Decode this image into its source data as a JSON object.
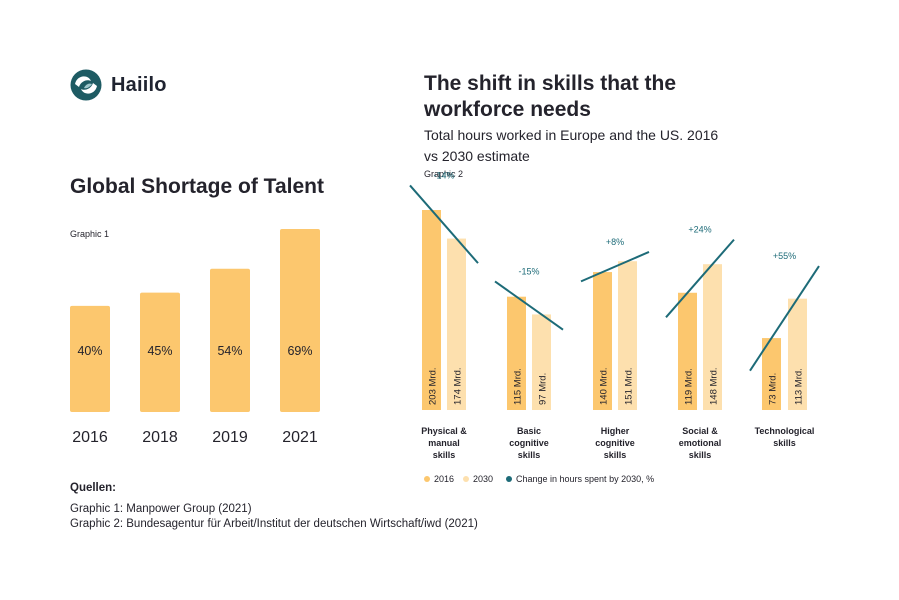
{
  "brand": {
    "name": "Haiilo",
    "logo_icon": "haiilo-logo-icon",
    "logo_color": "#1e5b63"
  },
  "colors": {
    "bar_2016": "#fcc76e",
    "bar_2030": "#fde0ae",
    "trend_line": "#1d6b78",
    "text": "#24232c"
  },
  "left_chart": {
    "title": "Global Shortage of Talent",
    "graphic_label": "Graphic 1"
  },
  "right_chart": {
    "title": "The shift in skills that the workforce needs",
    "subtitle": "Total hours worked in Europe and the US. 2016 vs 2030 estimate",
    "graphic_label": "Graphic 2"
  },
  "sources": {
    "heading": "Quellen:",
    "line1": "Graphic 1: Manpower Group (2021)",
    "line2": "Graphic 2: Bundesagentur für Arbeit/Institut der deutschen Wirtschaft/iwd (2021)"
  },
  "chart_data": [
    {
      "type": "bar",
      "title": "Global Shortage of Talent",
      "categories": [
        "2016",
        "2018",
        "2019",
        "2021"
      ],
      "values": [
        40,
        45,
        54,
        69
      ],
      "value_labels": [
        "40%",
        "45%",
        "54%",
        "69%"
      ],
      "xlabel": "",
      "ylabel": "",
      "ylim": [
        0,
        80
      ]
    },
    {
      "type": "bar",
      "title": "The shift in skills that the workforce needs",
      "categories": [
        [
          "Physical &",
          "manual",
          "skills"
        ],
        [
          "Basic",
          "cognitive",
          "skills"
        ],
        [
          "Higher",
          "cognitive",
          "skills"
        ],
        [
          "Social &",
          "emotional",
          "skills"
        ],
        [
          "Technological",
          "skills"
        ]
      ],
      "series": [
        {
          "name": "2016",
          "values": [
            203,
            115,
            140,
            119,
            73
          ],
          "labels": [
            "203 Mrd.",
            "115 Mrd.",
            "140 Mrd.",
            "119 Mrd.",
            "73 Mrd."
          ]
        },
        {
          "name": "2030",
          "values": [
            174,
            97,
            151,
            148,
            113
          ],
          "labels": [
            "174 Mrd.",
            "97 Mrd.",
            "151 Mrd.",
            "148 Mrd.",
            "113 Mrd."
          ]
        }
      ],
      "change_percent": [
        -14,
        -15,
        8,
        24,
        55
      ],
      "change_labels": [
        "-14%",
        "-15%",
        "+8%",
        "+24%",
        "+55%"
      ],
      "legend": [
        "2016",
        "2030",
        "Change in hours spent by 2030, %"
      ],
      "ylim": [
        0,
        215
      ]
    }
  ]
}
